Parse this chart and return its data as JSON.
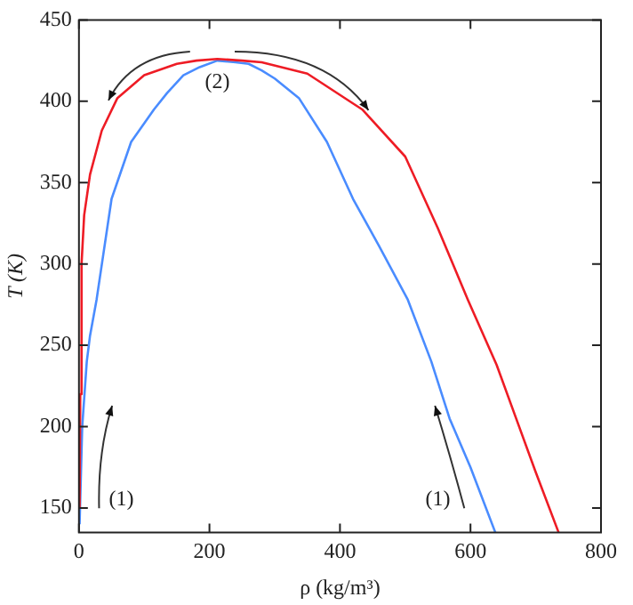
{
  "chart_data": {
    "type": "line",
    "xlabel": "ρ (kg/m³)",
    "ylabel": "T (K)",
    "xlim": [
      0,
      800
    ],
    "xticks": [
      0,
      200,
      400,
      600,
      800
    ],
    "ylim": [
      135,
      450
    ],
    "yticks": [
      150,
      200,
      250,
      300,
      350,
      400,
      450
    ],
    "marker": "none",
    "line_style": "solid",
    "series": [
      {
        "color": "#ee1c25",
        "x": [
          1,
          2,
          4,
          8,
          17,
          35,
          59,
          100,
          150,
          180,
          212,
          250,
          280,
          350,
          434,
          500,
          550,
          596,
          640,
          670,
          700,
          735
        ],
        "values": [
          150,
          220,
          300,
          330,
          355,
          382,
          402,
          416,
          423,
          425,
          426,
          425,
          424,
          417,
          395,
          366,
          322,
          278,
          238,
          205,
          172,
          135
        ]
      },
      {
        "color": "#4a8cff",
        "x": [
          1,
          5,
          12,
          17,
          27,
          50,
          80,
          115,
          135,
          160,
          185,
          212,
          240,
          260,
          280,
          300,
          337,
          380,
          420,
          460,
          504,
          540,
          568,
          600,
          638
        ],
        "values": [
          140,
          200,
          240,
          256,
          278,
          340,
          375,
          395,
          405,
          416,
          421,
          425,
          424,
          423,
          419,
          414,
          402,
          375,
          340,
          311,
          278,
          240,
          205,
          175,
          135
        ]
      }
    ],
    "annotations": [
      "(1)",
      "(1)",
      {
        "text": "(2)",
        "x": 212,
        "y": 426
      }
    ]
  }
}
